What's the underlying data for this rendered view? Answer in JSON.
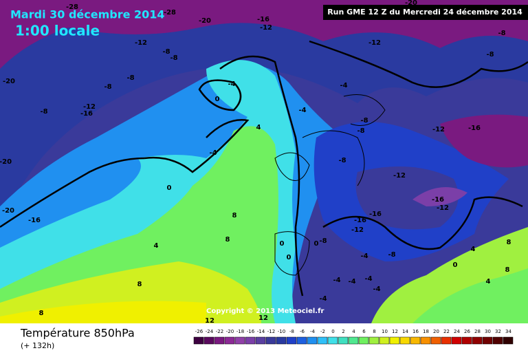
{
  "header": {
    "date": "Mardi 30 décembre 2014",
    "local_time": "1:00 locale",
    "run": "Run GME 12 Z du Mercredi 24 décembre 2014",
    "copyright": "Copyright © 2013 Meteociel.fr"
  },
  "footer": {
    "title": "Température 850hPa",
    "lead_time": "(+ 132h)"
  },
  "color_scale": {
    "values": [
      -26,
      -24,
      -22,
      -20,
      -18,
      -16,
      -14,
      -12,
      -10,
      -8,
      -6,
      -4,
      -2,
      0,
      2,
      4,
      6,
      8,
      10,
      12,
      14,
      16,
      18,
      20,
      22,
      24,
      26,
      28,
      30,
      32,
      34
    ],
    "colors": [
      "#3d0040",
      "#5a0a5e",
      "#7a1a80",
      "#8c2a96",
      "#9040a8",
      "#7b3fa8",
      "#5a3fa0",
      "#3a3a9a",
      "#2a3aa0",
      "#2040c8",
      "#1e60e0",
      "#2090f0",
      "#30c0f8",
      "#40e0e8",
      "#40e0c0",
      "#50e890",
      "#70f060",
      "#a0f040",
      "#d0f020",
      "#f0f000",
      "#f8d800",
      "#f8b800",
      "#f89000",
      "#f06000",
      "#e83000",
      "#d00000",
      "#b00000",
      "#900000",
      "#700000",
      "#500000",
      "#300000"
    ]
  },
  "contour_labels": [
    -28,
    -28,
    -20,
    -16,
    -12,
    -12,
    -8,
    -8,
    -8,
    -8,
    -12,
    -16,
    -8,
    -20,
    -20,
    -20,
    -16,
    -4,
    0,
    4,
    -4,
    0,
    8,
    8,
    4,
    8,
    8,
    12,
    12,
    -4,
    -4,
    -8,
    -8,
    -12,
    -16,
    -8,
    -12,
    -16,
    -12,
    -16,
    -16,
    -12,
    -8,
    0,
    0,
    0,
    -4,
    -8,
    -4,
    -4,
    -4,
    -4,
    -4,
    0,
    4,
    8,
    4,
    8,
    -8,
    -8,
    -20,
    -12
  ]
}
